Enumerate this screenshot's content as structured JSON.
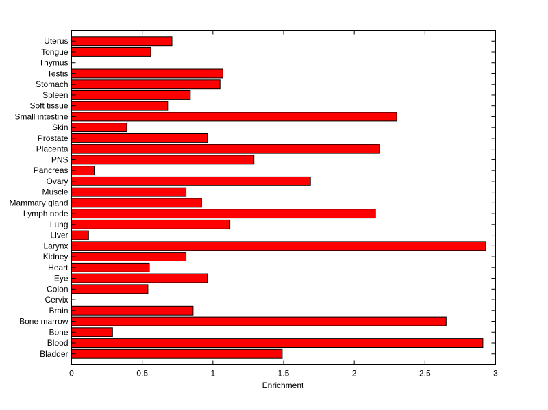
{
  "chart_data": {
    "type": "bar",
    "orientation": "horizontal",
    "title": "",
    "xlabel": "Enrichment",
    "ylabel": "",
    "xlim": [
      0,
      3
    ],
    "xticks": [
      0,
      0.5,
      1,
      1.5,
      2,
      2.5,
      3
    ],
    "xtick_labels": [
      "0",
      "0.5",
      "1",
      "1.5",
      "2",
      "2.5",
      "3"
    ],
    "grid": false,
    "bar_color": "#ff0000",
    "categories": [
      "Bladder",
      "Blood",
      "Bone",
      "Bone marrow",
      "Brain",
      "Cervix",
      "Colon",
      "Eye",
      "Heart",
      "Kidney",
      "Larynx",
      "Liver",
      "Lung",
      "Lymph node",
      "Mammary gland",
      "Muscle",
      "Ovary",
      "Pancreas",
      "PNS",
      "Placenta",
      "Prostate",
      "Skin",
      "Small intestine",
      "Soft tissue",
      "Spleen",
      "Stomach",
      "Testis",
      "Thymus",
      "Tongue",
      "Uterus"
    ],
    "values": [
      1.49,
      2.91,
      0.29,
      2.65,
      0.86,
      0,
      0.54,
      0.96,
      0.55,
      0.81,
      2.93,
      0.12,
      1.12,
      2.15,
      0.92,
      0.81,
      1.69,
      0.16,
      1.29,
      2.18,
      0.96,
      0.39,
      2.3,
      0.68,
      0.84,
      1.05,
      1.07,
      0,
      0.56,
      0.71
    ]
  }
}
